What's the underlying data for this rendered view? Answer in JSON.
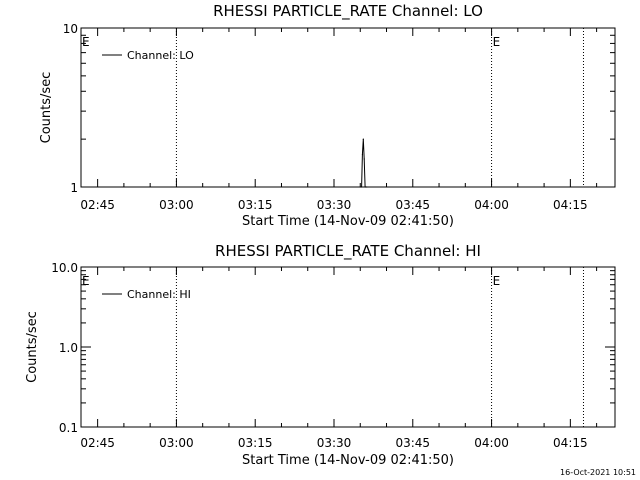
{
  "chart_data": [
    {
      "type": "line",
      "title": "RHESSI PARTICLE_RATE Channel: LO",
      "xlabel": "Start Time (14-Nov-09 02:41:50)",
      "ylabel": "Counts/sec",
      "x_tick_labels": [
        "02:45",
        "03:00",
        "03:15",
        "03:30",
        "03:45",
        "04:00",
        "04:15"
      ],
      "x_ticks": [
        "02:45",
        "03:00",
        "03:15",
        "03:30",
        "03:45",
        "04:00",
        "04:15"
      ],
      "xlim": [
        "02:41:50",
        "04:23:30"
      ],
      "y_scale": "log",
      "ylim": [
        1,
        10
      ],
      "y_tick_labels": [
        "1",
        "10"
      ],
      "y_ticks": [
        1,
        10
      ],
      "grid": false,
      "legend": {
        "position": "top-left",
        "entries": [
          "Channel: LO"
        ]
      },
      "series": [
        {
          "name": "Channel: LO",
          "x": [
            "03:35:00",
            "03:35:15",
            "03:35:25",
            "03:35:35",
            "03:35:45",
            "03:35:55",
            "03:36:05",
            "03:36:15"
          ],
          "values": [
            1.0,
            1.0,
            1.6,
            2.0,
            1.5,
            1.0,
            1.0,
            1.0
          ]
        }
      ],
      "vertical_markers": [
        {
          "x": "02:41:50",
          "label": "E"
        },
        {
          "x": "03:00:00",
          "label": ""
        },
        {
          "x": "04:00:00",
          "label": "E"
        },
        {
          "x": "04:17:30",
          "label": ""
        }
      ]
    },
    {
      "type": "line",
      "title": "RHESSI PARTICLE_RATE Channel: HI",
      "xlabel": "Start Time (14-Nov-09 02:41:50)",
      "ylabel": "Counts/sec",
      "x_tick_labels": [
        "02:45",
        "03:00",
        "03:15",
        "03:30",
        "03:45",
        "04:00",
        "04:15"
      ],
      "x_ticks": [
        "02:45",
        "03:00",
        "03:15",
        "03:30",
        "03:45",
        "04:00",
        "04:15"
      ],
      "xlim": [
        "02:41:50",
        "04:23:30"
      ],
      "y_scale": "log",
      "ylim": [
        0.1,
        10
      ],
      "y_tick_labels": [
        "0.1",
        "1.0",
        "10.0"
      ],
      "y_ticks": [
        0.1,
        1,
        10
      ],
      "grid": false,
      "legend": {
        "position": "top-left",
        "entries": [
          "Channel: HI"
        ]
      },
      "series": [
        {
          "name": "Channel: HI",
          "x": [],
          "values": []
        }
      ],
      "vertical_markers": [
        {
          "x": "02:41:50",
          "label": "E"
        },
        {
          "x": "03:00:00",
          "label": ""
        },
        {
          "x": "04:00:00",
          "label": "E"
        },
        {
          "x": "04:17:30",
          "label": ""
        }
      ]
    }
  ],
  "footer": {
    "timestamp": "16-Oct-2021 10:51"
  }
}
